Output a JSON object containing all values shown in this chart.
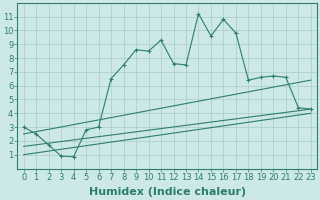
{
  "xlabel": "Humidex (Indice chaleur)",
  "bg_color": "#cce8e8",
  "line_color": "#2e7d6e",
  "grid_color": "#aacccc",
  "xlim": [
    -0.5,
    23.5
  ],
  "ylim": [
    0,
    12
  ],
  "xticks": [
    0,
    1,
    2,
    3,
    4,
    5,
    6,
    7,
    8,
    9,
    10,
    11,
    12,
    13,
    14,
    15,
    16,
    17,
    18,
    19,
    20,
    21,
    22,
    23
  ],
  "yticks": [
    1,
    2,
    3,
    4,
    5,
    6,
    7,
    8,
    9,
    10,
    11
  ],
  "line1_x": [
    0,
    1,
    2,
    3,
    4,
    5,
    6,
    7,
    8,
    9,
    10,
    11,
    12,
    13,
    14,
    15,
    16,
    17,
    18,
    19,
    20,
    21,
    22,
    23
  ],
  "line1_y": [
    3.0,
    2.5,
    1.7,
    0.9,
    0.85,
    2.8,
    3.0,
    6.5,
    7.5,
    8.6,
    8.5,
    9.3,
    7.6,
    7.5,
    11.2,
    9.6,
    10.8,
    9.8,
    6.4,
    6.6,
    6.7,
    6.6,
    4.4,
    4.3
  ],
  "line2_x": [
    0,
    23
  ],
  "line2_y": [
    2.5,
    6.4
  ],
  "line3_x": [
    0,
    23
  ],
  "line3_y": [
    1.6,
    4.3
  ],
  "line4_x": [
    0,
    23
  ],
  "line4_y": [
    1.0,
    4.0
  ],
  "tick_fontsize": 6,
  "xlabel_fontsize": 8
}
